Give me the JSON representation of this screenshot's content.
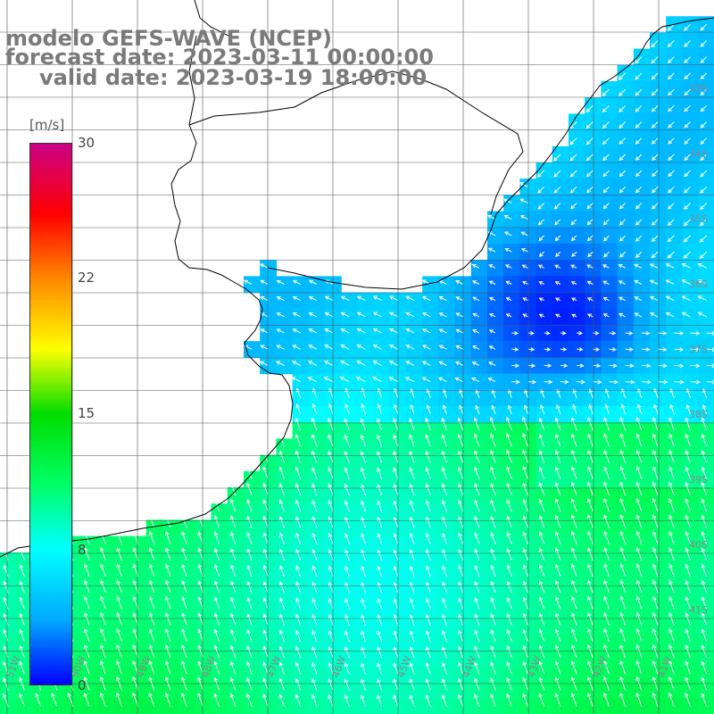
{
  "title": {
    "line1": "modelo GEFS-WAVE (NCEP)",
    "line2": "forecast date: 2023-03-11 00:00:00",
    "line3": "valid date: 2023-03-19 18:00:00"
  },
  "legend": {
    "unit": "[m/s]",
    "ticks": [
      "30",
      "22",
      "15",
      "8",
      "0"
    ],
    "tick_values": [
      30,
      22,
      15,
      8,
      0
    ],
    "min": 0,
    "max": 30
  },
  "axes": {
    "lon_labels": [
      "51W",
      "50W",
      "49W",
      "48W",
      "47W",
      "46W",
      "45W",
      "44W",
      "43W",
      "42W",
      "41W"
    ],
    "lat_labels": [
      "33S",
      "34S",
      "35S",
      "36S",
      "37S",
      "38S",
      "39S",
      "40S",
      "41S"
    ]
  },
  "colors": {
    "land": "#ffffff",
    "grid": "#555555",
    "coast": "#000000",
    "arrows": "#ffffff",
    "title_text": "#7a7a7a",
    "colormap": [
      "#0000ff",
      "#00aaff",
      "#00ffff",
      "#00ff66",
      "#00dd00",
      "#ffff00",
      "#ff8800",
      "#ff0000",
      "#cc0088"
    ]
  }
}
